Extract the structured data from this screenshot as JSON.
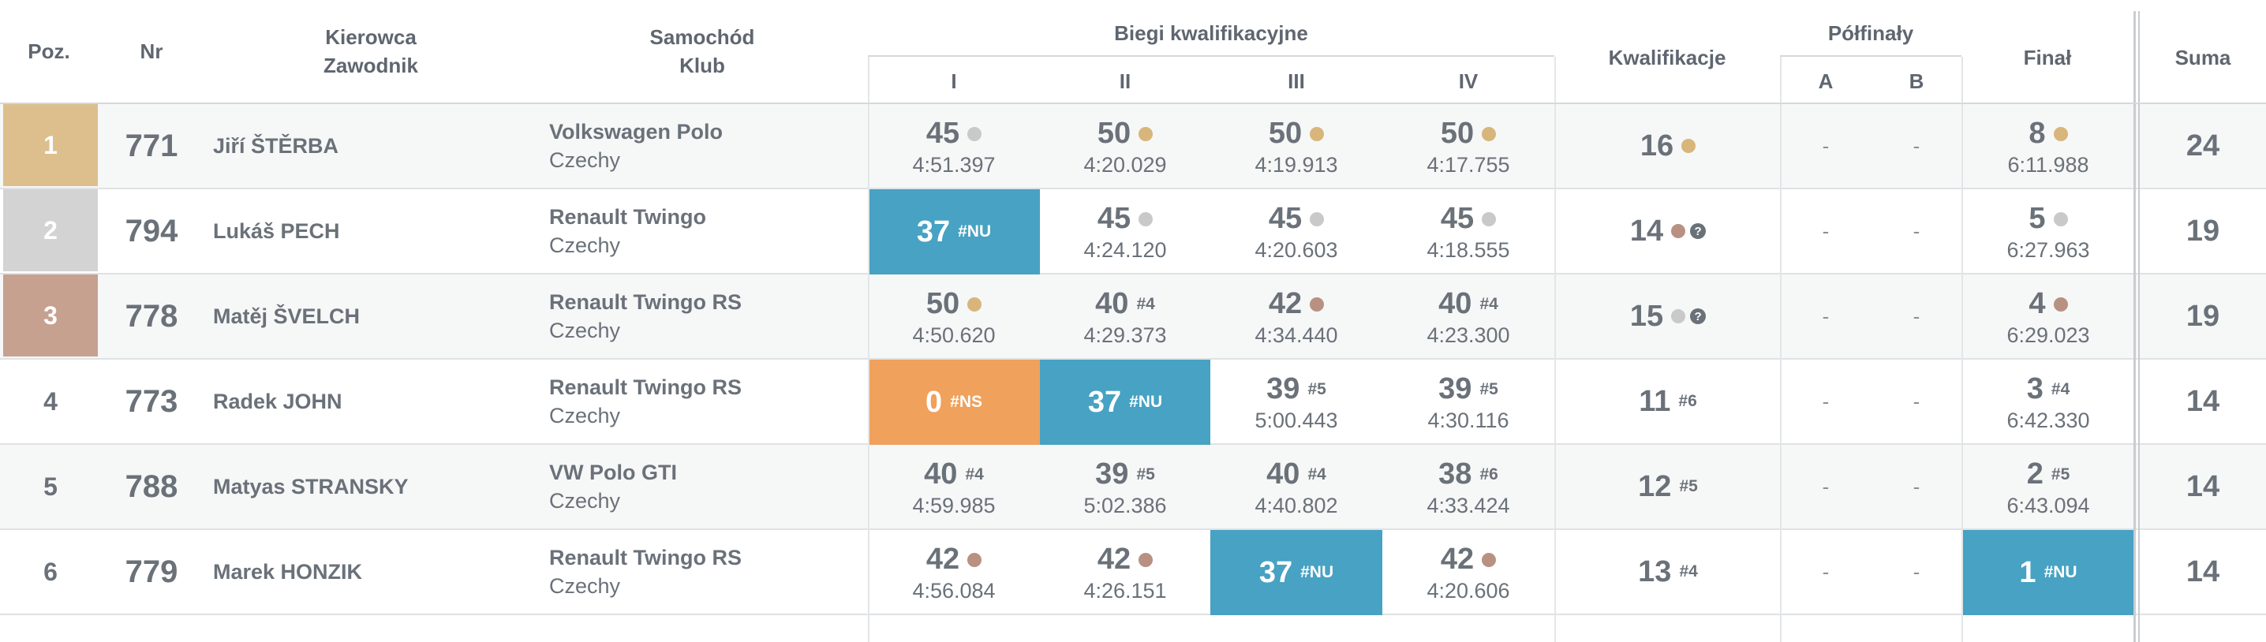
{
  "header": {
    "pos": "Poz.",
    "nr": "Nr",
    "driver_line1": "Kierowca",
    "driver_line2": "Zawodnik",
    "car_line1": "Samochód",
    "car_line2": "Klub",
    "heats": "Biegi kwalifikacyjne",
    "heat_cols": [
      "I",
      "II",
      "III",
      "IV"
    ],
    "qualification": "Kwalifikacje",
    "semifinals": "Półfinały",
    "semi_cols": [
      "A",
      "B"
    ],
    "final": "Finał",
    "sum": "Suma"
  },
  "colors": {
    "gold": "#dcbf8c",
    "silver": "#d3d3d3",
    "bronze": "#c6a190",
    "nu_blue": "#47a2c3",
    "ns_orange": "#f0a15c",
    "dot_gold": "#d8b57a",
    "dot_silver": "#c9c9c9",
    "dot_bronze": "#b89182"
  },
  "rows": [
    {
      "pos": "1",
      "nr": "771",
      "name": "Jiří ŠTĚRBA",
      "car": "Volkswagen Polo",
      "club": "Czechy",
      "heats": [
        {
          "score": "45",
          "time": "4:51.397",
          "dot": "silver"
        },
        {
          "score": "50",
          "time": "4:20.029",
          "dot": "gold"
        },
        {
          "score": "50",
          "time": "4:19.913",
          "dot": "gold"
        },
        {
          "score": "50",
          "time": "4:17.755",
          "dot": "gold"
        }
      ],
      "qual": {
        "score": "16",
        "dot": "gold"
      },
      "semi": [
        "-",
        "-"
      ],
      "final": {
        "score": "8",
        "time": "6:11.988",
        "dot": "gold"
      },
      "sum": "24"
    },
    {
      "pos": "2",
      "nr": "794",
      "name": "Lukáš PECH",
      "car": "Renault Twingo",
      "club": "Czechy",
      "heats": [
        {
          "score": "37",
          "tag": "#NU",
          "fill": "nu"
        },
        {
          "score": "45",
          "time": "4:24.120",
          "dot": "silver"
        },
        {
          "score": "45",
          "time": "4:20.603",
          "dot": "silver"
        },
        {
          "score": "45",
          "time": "4:18.555",
          "dot": "silver"
        }
      ],
      "qual": {
        "score": "14",
        "dot": "bronze",
        "q": "?"
      },
      "semi": [
        "-",
        "-"
      ],
      "final": {
        "score": "5",
        "time": "6:27.963",
        "dot": "silver"
      },
      "sum": "19"
    },
    {
      "pos": "3",
      "nr": "778",
      "name": "Matěj ŠVELCH",
      "car": "Renault Twingo RS",
      "club": "Czechy",
      "heats": [
        {
          "score": "50",
          "time": "4:50.620",
          "dot": "gold"
        },
        {
          "score": "40",
          "time": "4:29.373",
          "tag": "#4"
        },
        {
          "score": "42",
          "time": "4:34.440",
          "dot": "bronze"
        },
        {
          "score": "40",
          "time": "4:23.300",
          "tag": "#4"
        }
      ],
      "qual": {
        "score": "15",
        "dot": "silver",
        "q": "?"
      },
      "semi": [
        "-",
        "-"
      ],
      "final": {
        "score": "4",
        "time": "6:29.023",
        "dot": "bronze"
      },
      "sum": "19"
    },
    {
      "pos": "4",
      "nr": "773",
      "name": "Radek JOHN",
      "car": "Renault Twingo RS",
      "club": "Czechy",
      "heats": [
        {
          "score": "0",
          "tag": "#NS",
          "fill": "ns"
        },
        {
          "score": "37",
          "tag": "#NU",
          "fill": "nu"
        },
        {
          "score": "39",
          "time": "5:00.443",
          "tag": "#5"
        },
        {
          "score": "39",
          "time": "4:30.116",
          "tag": "#5"
        }
      ],
      "qual": {
        "score": "11",
        "tag": "#6"
      },
      "semi": [
        "-",
        "-"
      ],
      "final": {
        "score": "3",
        "time": "6:42.330",
        "tag": "#4"
      },
      "sum": "14"
    },
    {
      "pos": "5",
      "nr": "788",
      "name": "Matyas STRANSKY",
      "car": "VW Polo GTI",
      "club": "Czechy",
      "heats": [
        {
          "score": "40",
          "time": "4:59.985",
          "tag": "#4"
        },
        {
          "score": "39",
          "time": "5:02.386",
          "tag": "#5"
        },
        {
          "score": "40",
          "time": "4:40.802",
          "tag": "#4"
        },
        {
          "score": "38",
          "time": "4:33.424",
          "tag": "#6"
        }
      ],
      "qual": {
        "score": "12",
        "tag": "#5"
      },
      "semi": [
        "-",
        "-"
      ],
      "final": {
        "score": "2",
        "time": "6:43.094",
        "tag": "#5"
      },
      "sum": "14"
    },
    {
      "pos": "6",
      "nr": "779",
      "name": "Marek HONZIK",
      "car": "Renault Twingo RS",
      "club": "Czechy",
      "heats": [
        {
          "score": "42",
          "time": "4:56.084",
          "dot": "bronze"
        },
        {
          "score": "42",
          "time": "4:26.151",
          "dot": "bronze"
        },
        {
          "score": "37",
          "tag": "#NU",
          "fill": "nu"
        },
        {
          "score": "42",
          "time": "4:20.606",
          "dot": "bronze"
        }
      ],
      "qual": {
        "score": "13",
        "tag": "#4"
      },
      "semi": [
        "-",
        "-"
      ],
      "final": {
        "score": "1",
        "tag": "#NU",
        "fill": "nu"
      },
      "sum": "14"
    }
  ]
}
